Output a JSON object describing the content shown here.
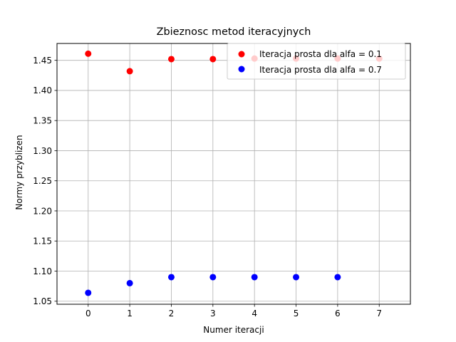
{
  "chart_data": {
    "type": "scatter",
    "title": "Zbieznosc metod iteracyjnych",
    "xlabel": "Numer iteracji",
    "ylabel": "Normy przyblizen",
    "xlim": [
      -0.75,
      7.75
    ],
    "ylim": [
      1.045,
      1.478
    ],
    "xticks": [
      0,
      1,
      2,
      3,
      4,
      5,
      6,
      7
    ],
    "yticks": [
      1.05,
      1.1,
      1.15,
      1.2,
      1.25,
      1.3,
      1.35,
      1.4,
      1.45
    ],
    "ytick_labels": [
      "1.05",
      "1.10",
      "1.15",
      "1.20",
      "1.25",
      "1.30",
      "1.35",
      "1.40",
      "1.45"
    ],
    "grid": true,
    "legend_position": "top-right",
    "series": [
      {
        "name": "Iteracja prosta dla alfa = 0.1",
        "color": "#ff0000",
        "x": [
          0,
          1,
          2,
          3,
          4,
          5,
          6,
          7
        ],
        "y": [
          1.461,
          1.432,
          1.452,
          1.452,
          1.453,
          1.453,
          1.453,
          1.453
        ]
      },
      {
        "name": "Iteracja prosta dla alfa = 0.7",
        "color": "#0000ff",
        "x": [
          0,
          1,
          2,
          3,
          4,
          5,
          6
        ],
        "y": [
          1.064,
          1.08,
          1.09,
          1.09,
          1.09,
          1.09,
          1.09
        ]
      }
    ]
  }
}
